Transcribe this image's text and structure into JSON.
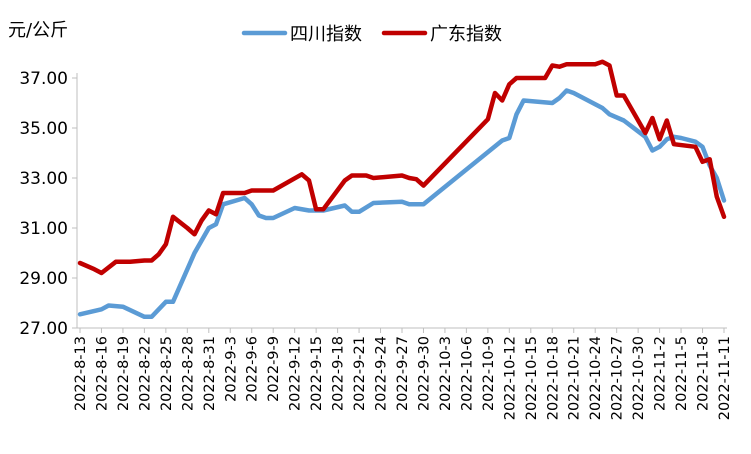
{
  "chart_data": {
    "type": "line",
    "unit_label": "元/公斤",
    "ylim": [
      27.0,
      37.0
    ],
    "yticks": [
      "27.00",
      "29.00",
      "31.00",
      "33.00",
      "35.00",
      "37.00"
    ],
    "legend_position": "top",
    "grid": false,
    "x_tick_labels": [
      "2022-8-13",
      "2022-8-16",
      "2022-8-19",
      "2022-8-22",
      "2022-8-25",
      "2022-8-28",
      "2022-8-31",
      "2022-9-3",
      "2022-9-6",
      "2022-9-9",
      "2022-9-12",
      "2022-9-15",
      "2022-9-18",
      "2022-9-21",
      "2022-9-24",
      "2022-9-27",
      "2022-9-30",
      "2022-10-3",
      "2022-10-6",
      "2022-10-9",
      "2022-10-12",
      "2022-10-15",
      "2022-10-18",
      "2022-10-21",
      "2022-10-24",
      "2022-10-27",
      "2022-10-30",
      "2022-11-2",
      "2022-11-5",
      "2022-11-8",
      "2022-11-11"
    ],
    "series": [
      {
        "name": "四川指数",
        "color": "#5b9bd5",
        "points": [
          [
            "2022-8-13",
            27.55
          ],
          [
            "2022-8-16",
            27.75
          ],
          [
            "2022-8-17",
            27.9
          ],
          [
            "2022-8-19",
            27.85
          ],
          [
            "2022-8-22",
            27.45
          ],
          [
            "2022-8-23",
            27.45
          ],
          [
            "2022-8-25",
            28.05
          ],
          [
            "2022-8-26",
            28.05
          ],
          [
            "2022-8-29",
            30.0
          ],
          [
            "2022-8-31",
            31.0
          ],
          [
            "2022-9-1",
            31.15
          ],
          [
            "2022-9-2",
            31.95
          ],
          [
            "2022-9-5",
            32.2
          ],
          [
            "2022-9-6",
            31.95
          ],
          [
            "2022-9-7",
            31.5
          ],
          [
            "2022-9-8",
            31.4
          ],
          [
            "2022-9-9",
            31.4
          ],
          [
            "2022-9-12",
            31.8
          ],
          [
            "2022-9-14",
            31.7
          ],
          [
            "2022-9-16",
            31.7
          ],
          [
            "2022-9-19",
            31.9
          ],
          [
            "2022-9-20",
            31.65
          ],
          [
            "2022-9-21",
            31.65
          ],
          [
            "2022-9-23",
            32.0
          ],
          [
            "2022-9-27",
            32.05
          ],
          [
            "2022-9-28",
            31.95
          ],
          [
            "2022-9-30",
            31.95
          ],
          [
            "2022-10-11",
            34.5
          ],
          [
            "2022-10-12",
            34.6
          ],
          [
            "2022-10-13",
            35.55
          ],
          [
            "2022-10-14",
            36.1
          ],
          [
            "2022-10-18",
            36.0
          ],
          [
            "2022-10-19",
            36.2
          ],
          [
            "2022-10-20",
            36.5
          ],
          [
            "2022-10-21",
            36.4
          ],
          [
            "2022-10-25",
            35.8
          ],
          [
            "2022-10-26",
            35.55
          ],
          [
            "2022-10-28",
            35.3
          ],
          [
            "2022-10-31",
            34.65
          ],
          [
            "2022-11-1",
            34.1
          ],
          [
            "2022-11-2",
            34.25
          ],
          [
            "2022-11-3",
            34.55
          ],
          [
            "2022-11-4",
            34.65
          ],
          [
            "2022-11-5",
            34.6
          ],
          [
            "2022-11-7",
            34.45
          ],
          [
            "2022-11-8",
            34.25
          ],
          [
            "2022-11-9",
            33.5
          ],
          [
            "2022-11-10",
            33.0
          ],
          [
            "2022-11-11",
            32.1
          ]
        ]
      },
      {
        "name": "广东指数",
        "color": "#c00000",
        "points": [
          [
            "2022-8-13",
            29.6
          ],
          [
            "2022-8-15",
            29.35
          ],
          [
            "2022-8-16",
            29.2
          ],
          [
            "2022-8-18",
            29.65
          ],
          [
            "2022-8-20",
            29.65
          ],
          [
            "2022-8-22",
            29.7
          ],
          [
            "2022-8-23",
            29.7
          ],
          [
            "2022-8-24",
            29.95
          ],
          [
            "2022-8-25",
            30.35
          ],
          [
            "2022-8-26",
            31.45
          ],
          [
            "2022-8-28",
            31.0
          ],
          [
            "2022-8-29",
            30.75
          ],
          [
            "2022-8-30",
            31.3
          ],
          [
            "2022-8-31",
            31.7
          ],
          [
            "2022-9-1",
            31.55
          ],
          [
            "2022-9-2",
            32.4
          ],
          [
            "2022-9-5",
            32.4
          ],
          [
            "2022-9-6",
            32.5
          ],
          [
            "2022-9-9",
            32.5
          ],
          [
            "2022-9-13",
            33.15
          ],
          [
            "2022-9-14",
            32.9
          ],
          [
            "2022-9-15",
            31.75
          ],
          [
            "2022-9-16",
            31.75
          ],
          [
            "2022-9-19",
            32.9
          ],
          [
            "2022-9-20",
            33.1
          ],
          [
            "2022-9-22",
            33.1
          ],
          [
            "2022-9-23",
            33.0
          ],
          [
            "2022-9-27",
            33.1
          ],
          [
            "2022-9-28",
            33.0
          ],
          [
            "2022-9-29",
            32.95
          ],
          [
            "2022-9-30",
            32.7
          ],
          [
            "2022-10-9",
            35.35
          ],
          [
            "2022-10-10",
            36.4
          ],
          [
            "2022-10-11",
            36.1
          ],
          [
            "2022-10-12",
            36.75
          ],
          [
            "2022-10-13",
            37.0
          ],
          [
            "2022-10-17",
            37.0
          ],
          [
            "2022-10-18",
            37.5
          ],
          [
            "2022-10-19",
            37.45
          ],
          [
            "2022-10-20",
            37.55
          ],
          [
            "2022-10-24",
            37.55
          ],
          [
            "2022-10-25",
            37.65
          ],
          [
            "2022-10-26",
            37.5
          ],
          [
            "2022-10-27",
            36.3
          ],
          [
            "2022-10-28",
            36.3
          ],
          [
            "2022-10-31",
            34.8
          ],
          [
            "2022-11-1",
            35.4
          ],
          [
            "2022-11-2",
            34.55
          ],
          [
            "2022-11-3",
            35.3
          ],
          [
            "2022-11-4",
            34.35
          ],
          [
            "2022-11-7",
            34.25
          ],
          [
            "2022-11-8",
            33.65
          ],
          [
            "2022-11-9",
            33.75
          ],
          [
            "2022-11-10",
            32.25
          ],
          [
            "2022-11-11",
            31.45
          ]
        ]
      }
    ]
  }
}
